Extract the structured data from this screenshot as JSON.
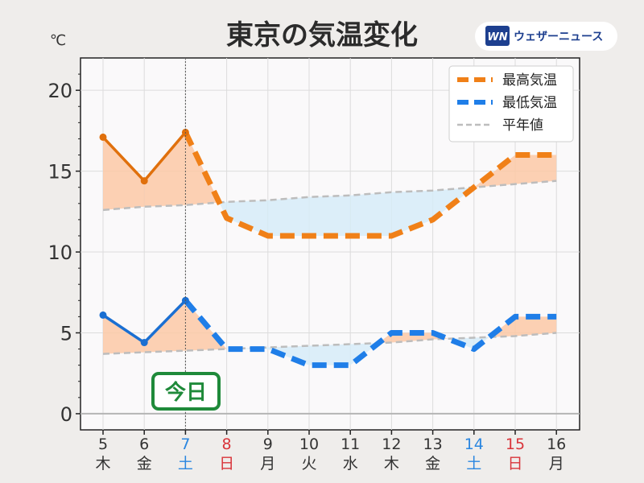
{
  "chart_data": {
    "type": "line",
    "title": "東京の気温変化",
    "unit_label": "℃",
    "categories": [
      "5",
      "6",
      "7",
      "8",
      "9",
      "10",
      "11",
      "12",
      "13",
      "14",
      "15",
      "16"
    ],
    "weekdays": [
      "木",
      "金",
      "土",
      "日",
      "月",
      "火",
      "水",
      "木",
      "金",
      "土",
      "日",
      "月"
    ],
    "ylim": [
      -1,
      22
    ],
    "yticks": [
      0,
      5,
      10,
      15,
      20
    ],
    "today_index": 2,
    "today_label": "今日",
    "series": [
      {
        "name": "最高気温",
        "color": "#f08018",
        "values": [
          17.1,
          14.4,
          17.4,
          12.1,
          11.0,
          11.0,
          11.0,
          11.0,
          12.0,
          14.0,
          16.0,
          16.0
        ]
      },
      {
        "name": "最低気温",
        "color": "#1f7ee8",
        "values": [
          6.1,
          4.4,
          7.0,
          4.0,
          4.0,
          3.0,
          3.0,
          5.0,
          5.0,
          4.0,
          6.0,
          6.0
        ]
      },
      {
        "name": "平年値",
        "color": "#bdbdbd",
        "values_high": [
          12.6,
          12.8,
          12.9,
          13.1,
          13.2,
          13.4,
          13.5,
          13.7,
          13.8,
          14.0,
          14.2,
          14.4
        ],
        "values_low": [
          3.7,
          3.8,
          3.9,
          4.0,
          4.1,
          4.2,
          4.3,
          4.4,
          4.6,
          4.7,
          4.8,
          5.0
        ]
      }
    ],
    "grid": true,
    "legend": "top-right",
    "weekday_colors": {
      "saturday": "#2a86e0",
      "sunday": "#d9343a",
      "default": "#333333"
    }
  },
  "brand": {
    "logo_text": "ウェザーニュース",
    "logo_mark": "WN"
  }
}
